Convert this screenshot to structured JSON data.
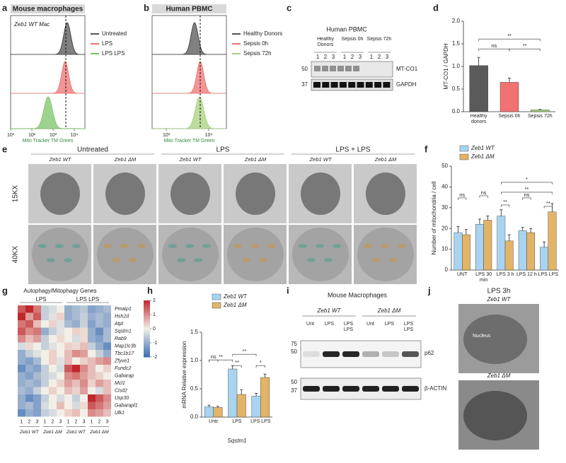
{
  "panels": {
    "a": {
      "letter": "a",
      "title": "Mouse macrophages",
      "sample": "Zeb1 WT Mac",
      "legend": [
        "Untreated",
        "LPS",
        "LPS LPS"
      ],
      "xticks": [
        "10¹",
        "10²",
        "10³",
        "10⁴"
      ],
      "xlabel": "Mito Tracker TM Green"
    },
    "b": {
      "letter": "b",
      "title": "Human PBMC",
      "legend": [
        "Healthy Donors",
        "Sepsis 0h",
        "Sepsis 72h"
      ],
      "xticks": [
        "10³",
        "10⁴"
      ],
      "xlabel": "Mito Tracker TM Green"
    },
    "c": {
      "letter": "c",
      "title": "Human PBMC",
      "groups": [
        "Healthy Donors",
        "Sepsis 0h",
        "Sepsis 72h"
      ],
      "lanes": [
        "1",
        "2",
        "3"
      ],
      "markers": [
        "50",
        "37"
      ],
      "bands": [
        "MT-CO1",
        "GAPDH"
      ]
    },
    "e": {
      "letter": "e",
      "groups": [
        "Untreated",
        "LPS",
        "LPS + LPS"
      ],
      "genotypes": [
        "Zeb1 WT",
        "Zeb1 ΔM"
      ],
      "rows": [
        "15KX",
        "40KX"
      ]
    },
    "i": {
      "letter": "i",
      "title": "Mouse Macrophages",
      "genotypes": [
        "Zeb1 WT",
        "Zeb1 ΔM"
      ],
      "lanes": [
        "Unt",
        "LPS",
        "LPS LPS"
      ],
      "markers_top": [
        "75",
        "50"
      ],
      "markers_bottom": [
        "50",
        "37"
      ],
      "bands": [
        "p62",
        "β-ACTIN"
      ]
    },
    "j": {
      "letter": "j",
      "title": "LPS 3h",
      "genotypes": [
        "Zeb1 WT",
        "Zeb1 ΔM"
      ],
      "label": "Nucleus"
    }
  },
  "chart_data": [
    {
      "letter": "d",
      "type": "bar",
      "ylabel": "MT-CO1 / GAPDH",
      "categories": [
        "Healthy donors",
        "Sepsis 0h",
        "Sepsis 72h"
      ],
      "values": [
        1.02,
        0.65,
        0.04
      ],
      "errors": [
        0.18,
        0.09,
        0.01
      ],
      "colors": [
        "#5a5a5a",
        "#f07272",
        "#a8d080"
      ],
      "ylim": [
        0,
        2
      ],
      "yticks": [
        {
          "value": 0,
          "label": "0.0"
        },
        {
          "value": 0.5,
          "label": "0.5"
        },
        {
          "value": 1,
          "label": "1.0"
        },
        {
          "value": 1.5,
          "label": "1.5"
        },
        {
          "value": 2,
          "label": "2.0"
        }
      ],
      "annotations": [
        "ns",
        "**",
        "**"
      ]
    },
    {
      "letter": "f",
      "type": "bar",
      "ylabel": "Number of mitochondria / cell",
      "categories": [
        "UNT",
        "LPS 30 min",
        "LPS 3 h",
        "LPS 12 h",
        "LPS LPS"
      ],
      "series": [
        {
          "name": "Zeb1 WT",
          "color": "#a8d4f2",
          "values": [
            18,
            22,
            26,
            19,
            11
          ],
          "errors": [
            3,
            2.5,
            3,
            1.5,
            2.5
          ]
        },
        {
          "name": "Zeb1 ΔM",
          "color": "#e2b468",
          "values": [
            17,
            24,
            14,
            18,
            28
          ],
          "errors": [
            2.5,
            2,
            3,
            2,
            4
          ]
        }
      ],
      "ylim": [
        0,
        50
      ],
      "yticks": [
        0,
        10,
        20,
        30,
        40,
        50
      ],
      "annotations": [
        "ns",
        "ns",
        "**",
        "ns",
        "**",
        "**",
        "*"
      ]
    },
    {
      "letter": "g",
      "type": "heatmap",
      "title": "Autophagy/Mitophagy Genes",
      "groups": [
        "LPS",
        "LPS LPS"
      ],
      "genotypes": [
        "Zeb1 WT",
        "Zeb1 ΔM",
        "Zeb1 WT",
        "Zeb1 ΔM"
      ],
      "columns": [
        "1",
        "2",
        "3",
        "1",
        "2",
        "3",
        "1",
        "2",
        "3",
        "1",
        "2",
        "3"
      ],
      "rows": [
        "Pmaip1",
        "Hsh2d",
        "Atpl",
        "Sqstm1",
        "Rab9",
        "Map1lc3b",
        "Tbc1b17",
        "Zfyve1",
        "Fundc2",
        "Gabarap",
        "Mcl1",
        "Cisd2",
        "Usp30",
        "Gabarapl1",
        "Ulk1"
      ],
      "values": [
        [
          1.5,
          2,
          1.2,
          -0.5,
          -0.3,
          0,
          -1,
          -0.8,
          -0.6,
          -1.2,
          -1,
          -0.8
        ],
        [
          2,
          0.8,
          1.5,
          -0.5,
          -0.2,
          0.3,
          -1,
          -0.8,
          -0.5,
          -1,
          -0.8,
          -1
        ],
        [
          1.2,
          1.5,
          0.5,
          0,
          0.3,
          -0.2,
          -0.8,
          -1,
          -0.5,
          -1.2,
          -0.8,
          -1
        ],
        [
          1.5,
          1,
          1.2,
          -1,
          -0.5,
          -0.2,
          0,
          0.3,
          0.2,
          -1,
          -1.5,
          -0.8
        ],
        [
          1,
          0.5,
          0.8,
          -0.5,
          0,
          0.2,
          0,
          -0.3,
          0.2,
          -1,
          -1.2,
          -0.8
        ],
        [
          -0.3,
          0.2,
          0,
          -0.5,
          -0.2,
          0,
          0.3,
          0.2,
          0.5,
          -0.5,
          -1,
          -1.5
        ],
        [
          -1,
          -0.5,
          -0.2,
          0,
          0.3,
          0,
          0.5,
          1,
          0.8,
          0,
          -0.5,
          -1
        ],
        [
          -1,
          -1.2,
          -0.8,
          0,
          0.3,
          -0.2,
          0.5,
          0,
          0.3,
          0.5,
          0.8,
          1
        ],
        [
          -1.5,
          -1,
          -1.2,
          -0.5,
          0,
          -0.3,
          1.5,
          2,
          1,
          0.5,
          0,
          0.3
        ],
        [
          -1,
          -1.2,
          -0.8,
          -0.5,
          -0.3,
          0,
          1,
          1.2,
          0.8,
          0.5,
          0.3,
          0
        ],
        [
          -1,
          -0.8,
          -1,
          -0.5,
          0,
          0.3,
          0.8,
          0.5,
          1,
          0.3,
          0.8,
          0.5
        ],
        [
          -0.8,
          -1,
          -0.5,
          0,
          0.3,
          0,
          0.5,
          0.3,
          0.8,
          0,
          -0.3,
          0.5
        ],
        [
          -1,
          -1.5,
          -1.2,
          -0.5,
          0,
          -0.3,
          0,
          -0.5,
          0,
          2,
          1.5,
          1
        ],
        [
          -1,
          -0.8,
          -1.2,
          -0.3,
          0,
          0.5,
          0,
          -0.3,
          0.2,
          1.5,
          1.2,
          0.8
        ],
        [
          -1.5,
          -1,
          -1.2,
          -0.5,
          -0.3,
          0,
          0.3,
          0.5,
          0,
          1,
          0.8,
          0.5
        ]
      ],
      "zlim": [
        -2,
        2
      ],
      "zticks": [
        -2,
        -1,
        0,
        1,
        2
      ],
      "colors": [
        "#3a6db5",
        "#f2efe6",
        "#c1272d"
      ]
    },
    {
      "letter": "h",
      "type": "bar",
      "ylabel": "mRNA Relative expression",
      "xlabel": "Sqstm1",
      "categories": [
        "Untr",
        "LPS",
        "LPS LPS"
      ],
      "series": [
        {
          "name": "Zeb1 WT",
          "color": "#a8d4f2",
          "values": [
            0.18,
            0.85,
            0.37
          ],
          "errors": [
            0.03,
            0.06,
            0.05
          ]
        },
        {
          "name": "Zeb1 ΔM",
          "color": "#e2b468",
          "values": [
            0.17,
            0.4,
            0.7
          ],
          "errors": [
            0.02,
            0.08,
            0.06
          ]
        }
      ],
      "ylim": [
        0,
        1.5
      ],
      "yticks": [
        {
          "value": 0,
          "label": "0.0"
        },
        {
          "value": 0.5,
          "label": "0.5"
        },
        {
          "value": 1,
          "label": "1.0"
        },
        {
          "value": 1.5,
          "label": "1.5"
        }
      ],
      "annotations": [
        "ns",
        "**",
        "**",
        "**",
        "*"
      ]
    }
  ]
}
